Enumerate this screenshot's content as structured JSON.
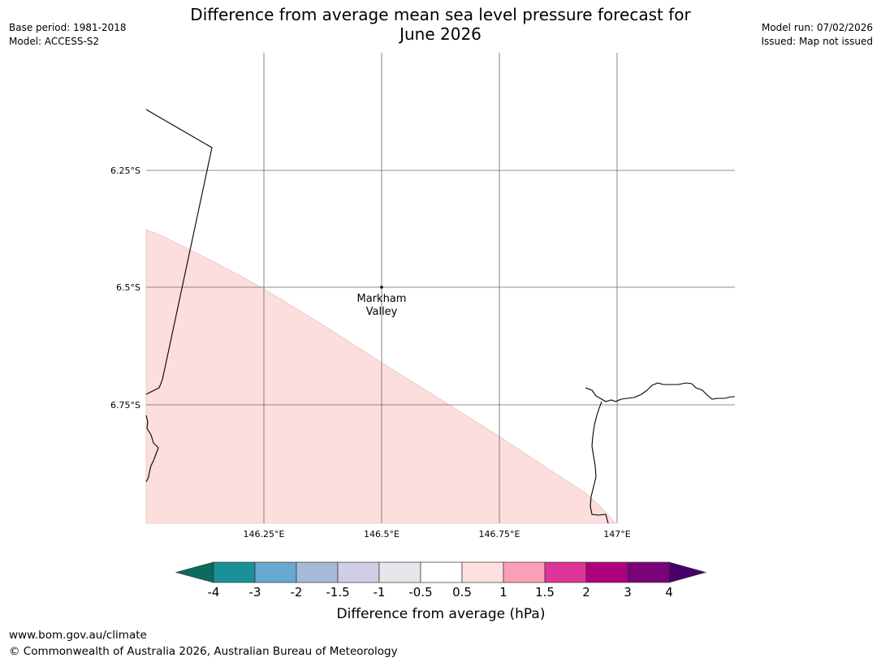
{
  "title": {
    "line1": "Difference from average mean sea level pressure forecast for",
    "line2": "June 2026"
  },
  "meta_left": {
    "base_period": "Base period: 1981-2018",
    "model": "Model: ACCESS-S2"
  },
  "meta_right": {
    "model_run": "Model run: 07/02/2026",
    "issued": "Issued: Map not issued"
  },
  "map": {
    "lat_labels": [
      "6.25°S",
      "6.5°S",
      "6.75°S"
    ],
    "lon_labels": [
      "146.25°E",
      "146.5°E",
      "146.75°E",
      "147°E"
    ],
    "place": {
      "line1": "Markham",
      "line2": "Valley"
    },
    "anomaly_fill_color": "#fcdedd",
    "gridline_color": "#666666"
  },
  "colorbar": {
    "title": "Difference from average (hPa)",
    "labels": [
      "-4",
      "-3",
      "-2",
      "-1.5",
      "-1",
      "-0.5",
      "0.5",
      "1",
      "1.5",
      "2",
      "3",
      "4"
    ],
    "colors": [
      "#1a9196",
      "#68a9d1",
      "#a5bad9",
      "#cfcee5",
      "#e8e6ea",
      "#ffffff",
      "#fde0df",
      "#f9a0b6",
      "#dd3497",
      "#ae017e",
      "#7a0177"
    ],
    "low_extend_color": "#0b6b5e",
    "high_extend_color": "#49006a"
  },
  "footer": {
    "url": "www.bom.gov.au/climate",
    "copyright": "© Commonwealth of Australia 2026, Australian Bureau of Meteorology"
  }
}
